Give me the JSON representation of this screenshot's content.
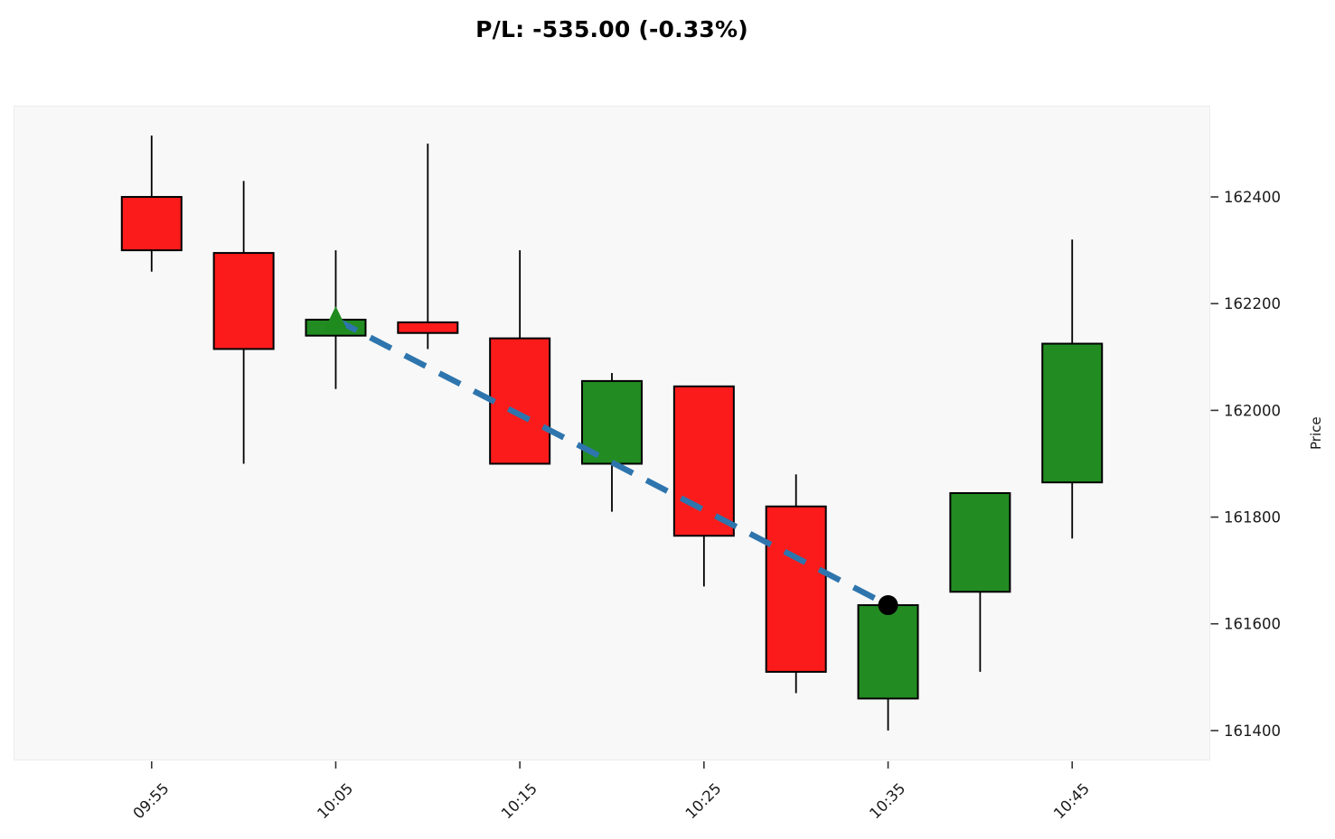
{
  "title": "P/L: -535.00 (-0.33%)",
  "chart_data": {
    "type": "candlestick",
    "title": "P/L: -535.00 (-0.33%)",
    "xlabel": "",
    "ylabel": "Price",
    "x": [
      "09:55",
      "10:00",
      "10:05",
      "10:10",
      "10:15",
      "10:20",
      "10:25",
      "10:30",
      "10:35",
      "10:40",
      "10:45"
    ],
    "ohlc": [
      {
        "time": "09:55",
        "open": 162400,
        "high": 162515,
        "low": 162260,
        "close": 162300
      },
      {
        "time": "10:00",
        "open": 162295,
        "high": 162430,
        "low": 161900,
        "close": 162115
      },
      {
        "time": "10:05",
        "open": 162140,
        "high": 162300,
        "low": 162040,
        "close": 162170
      },
      {
        "time": "10:10",
        "open": 162165,
        "high": 162500,
        "low": 162115,
        "close": 162145
      },
      {
        "time": "10:15",
        "open": 162135,
        "high": 162300,
        "low": 161900,
        "close": 161900
      },
      {
        "time": "10:20",
        "open": 161900,
        "high": 162070,
        "low": 161810,
        "close": 162055
      },
      {
        "time": "10:25",
        "open": 162045,
        "high": 162045,
        "low": 161670,
        "close": 161765
      },
      {
        "time": "10:30",
        "open": 161820,
        "high": 161880,
        "low": 161470,
        "close": 161510
      },
      {
        "time": "10:35",
        "open": 161460,
        "high": 161635,
        "low": 161400,
        "close": 161635
      },
      {
        "time": "10:40",
        "open": 161660,
        "high": 161845,
        "low": 161510,
        "close": 161845
      },
      {
        "time": "10:45",
        "open": 161865,
        "high": 162320,
        "low": 161760,
        "close": 162125
      }
    ],
    "x_tick_labels": [
      "09:55",
      "10:05",
      "10:15",
      "10:25",
      "10:35",
      "10:45"
    ],
    "y_tick_labels": [
      "161400",
      "161600",
      "161800",
      "162000",
      "162200",
      "162400"
    ],
    "ylim": [
      161344,
      162571
    ],
    "grid": false,
    "legend": false,
    "trade": {
      "direction": "long",
      "entry_time": "10:05",
      "entry_price": 162170,
      "exit_time": "10:35",
      "exit_price": 161635,
      "pl": "-535.00",
      "pl_pct": "-0.33%"
    },
    "colors": {
      "up_candle": "#228B22",
      "down_candle": "#fb1b1b",
      "wick_and_edge": "#000000",
      "trade_line": "#2e75ae",
      "entry_marker": "#1f8b1f",
      "exit_marker": "#000000",
      "plot_background": "#f8f8f8",
      "figure_background": "#ffffff",
      "tick_text": "#1a1a1a"
    }
  }
}
